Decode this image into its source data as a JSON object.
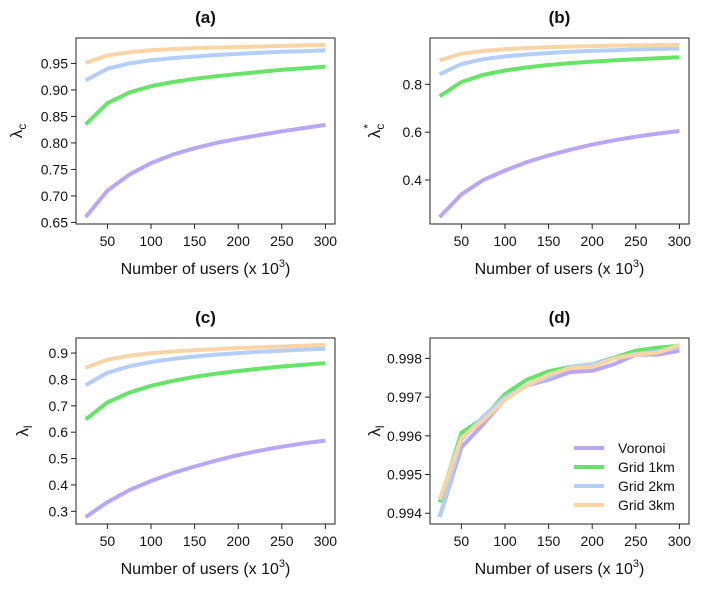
{
  "colors": {
    "Voronoi": "#b9a6f4",
    "Grid 1km": "#66e467",
    "Grid 2km": "#b4cef8",
    "Grid 3km": "#f8d4a6"
  },
  "legend": {
    "placement": "bottom-right",
    "panel": "(d)",
    "entries": [
      "Voronoi",
      "Grid 1km",
      "Grid 2km",
      "Grid 3km"
    ]
  },
  "chart_data": [
    {
      "type": "line",
      "title": "(a)",
      "xlabel": "Number of users (x 10^3)",
      "xlabel_base": "Number of users (x 10",
      "xlabel_sup": "3",
      "xlabel_close": ")",
      "ylabel": "λc",
      "ylabel_main": "λ",
      "ylabel_sub": "c",
      "ylabel_sup": "",
      "x": [
        25,
        50,
        75,
        100,
        125,
        150,
        175,
        200,
        225,
        250,
        275,
        300
      ],
      "xticks": [
        50,
        100,
        150,
        200,
        250,
        300
      ],
      "xtick_labels": [
        "50",
        "100",
        "150",
        "200",
        "250",
        "300"
      ],
      "yticks": [
        0.65,
        0.7,
        0.75,
        0.8,
        0.85,
        0.9,
        0.95
      ],
      "ytick_labels": [
        "0.65",
        "0.70",
        "0.75",
        "0.80",
        "0.85",
        "0.90",
        "0.95"
      ],
      "grid": false,
      "series": [
        {
          "name": "Voronoi",
          "values": [
            0.66,
            0.71,
            0.74,
            0.762,
            0.778,
            0.79,
            0.8,
            0.808,
            0.815,
            0.822,
            0.828,
            0.834
          ]
        },
        {
          "name": "Grid 1km",
          "values": [
            0.835,
            0.875,
            0.895,
            0.907,
            0.915,
            0.921,
            0.926,
            0.93,
            0.934,
            0.938,
            0.941,
            0.944
          ]
        },
        {
          "name": "Grid 2km",
          "values": [
            0.918,
            0.94,
            0.95,
            0.956,
            0.96,
            0.963,
            0.966,
            0.968,
            0.97,
            0.972,
            0.973,
            0.975
          ]
        },
        {
          "name": "Grid 3km",
          "values": [
            0.951,
            0.965,
            0.971,
            0.975,
            0.977,
            0.979,
            0.98,
            0.981,
            0.982,
            0.983,
            0.984,
            0.985
          ]
        }
      ]
    },
    {
      "type": "line",
      "title": "(b)",
      "xlabel": "Number of users (x 10^3)",
      "xlabel_base": "Number of users (x 10",
      "xlabel_sup": "3",
      "xlabel_close": ")",
      "ylabel": "λc*",
      "ylabel_main": "λ",
      "ylabel_sub": "c",
      "ylabel_sup": "*",
      "x": [
        25,
        50,
        75,
        100,
        125,
        150,
        175,
        200,
        225,
        250,
        275,
        300
      ],
      "xticks": [
        50,
        100,
        150,
        200,
        250,
        300
      ],
      "xtick_labels": [
        "50",
        "100",
        "150",
        "200",
        "250",
        "300"
      ],
      "yticks": [
        0.4,
        0.6,
        0.8
      ],
      "ytick_labels": [
        "0.4",
        "0.6",
        "0.8"
      ],
      "grid": false,
      "series": [
        {
          "name": "Voronoi",
          "values": [
            0.245,
            0.34,
            0.4,
            0.44,
            0.475,
            0.503,
            0.527,
            0.548,
            0.566,
            0.581,
            0.594,
            0.605
          ]
        },
        {
          "name": "Grid 1km",
          "values": [
            0.75,
            0.81,
            0.84,
            0.858,
            0.871,
            0.881,
            0.889,
            0.895,
            0.9,
            0.905,
            0.909,
            0.913
          ]
        },
        {
          "name": "Grid 2km",
          "values": [
            0.842,
            0.885,
            0.905,
            0.917,
            0.925,
            0.931,
            0.936,
            0.94,
            0.943,
            0.946,
            0.948,
            0.95
          ]
        },
        {
          "name": "Grid 3km",
          "values": [
            0.9,
            0.928,
            0.94,
            0.947,
            0.952,
            0.955,
            0.958,
            0.96,
            0.962,
            0.963,
            0.964,
            0.965
          ]
        }
      ]
    },
    {
      "type": "line",
      "title": "(c)",
      "xlabel": "Number of users (x 10^3)",
      "xlabel_base": "Number of users (x 10",
      "xlabel_sup": "3",
      "xlabel_close": ")",
      "ylabel": "λl",
      "ylabel_main": "λ",
      "ylabel_sub": "l",
      "ylabel_sup": "",
      "x": [
        25,
        50,
        75,
        100,
        125,
        150,
        175,
        200,
        225,
        250,
        275,
        300
      ],
      "xticks": [
        50,
        100,
        150,
        200,
        250,
        300
      ],
      "xtick_labels": [
        "50",
        "100",
        "150",
        "200",
        "250",
        "300"
      ],
      "yticks": [
        0.3,
        0.4,
        0.5,
        0.6,
        0.7,
        0.8,
        0.9
      ],
      "ytick_labels": [
        "0.3",
        "0.4",
        "0.5",
        "0.6",
        "0.7",
        "0.8",
        "0.9"
      ],
      "grid": false,
      "series": [
        {
          "name": "Voronoi",
          "values": [
            0.278,
            0.335,
            0.38,
            0.415,
            0.445,
            0.47,
            0.493,
            0.513,
            0.53,
            0.545,
            0.558,
            0.568
          ]
        },
        {
          "name": "Grid 1km",
          "values": [
            0.648,
            0.713,
            0.75,
            0.776,
            0.795,
            0.81,
            0.822,
            0.832,
            0.841,
            0.849,
            0.856,
            0.862
          ]
        },
        {
          "name": "Grid 2km",
          "values": [
            0.778,
            0.825,
            0.85,
            0.866,
            0.878,
            0.887,
            0.894,
            0.9,
            0.905,
            0.909,
            0.913,
            0.916
          ]
        },
        {
          "name": "Grid 3km",
          "values": [
            0.845,
            0.875,
            0.89,
            0.899,
            0.906,
            0.911,
            0.915,
            0.919,
            0.922,
            0.925,
            0.928,
            0.931
          ]
        }
      ]
    },
    {
      "type": "line",
      "title": "(d)",
      "xlabel": "Number of users (x 10^3)",
      "xlabel_base": "Number of users (x 10",
      "xlabel_sup": "3",
      "xlabel_close": ")",
      "ylabel": "λl",
      "ylabel_main": "λ",
      "ylabel_sub": "l",
      "ylabel_sup": "",
      "x": [
        25,
        50,
        75,
        100,
        125,
        150,
        175,
        200,
        225,
        250,
        275,
        300
      ],
      "xticks": [
        50,
        100,
        150,
        200,
        250,
        300
      ],
      "xtick_labels": [
        "50",
        "100",
        "150",
        "200",
        "250",
        "300"
      ],
      "yticks": [
        0.994,
        0.995,
        0.996,
        0.997,
        0.998
      ],
      "ytick_labels": [
        "0.994",
        "0.995",
        "0.996",
        "0.997",
        "0.998"
      ],
      "grid": false,
      "series": [
        {
          "name": "Voronoi",
          "values": [
            0.9939,
            0.9957,
            0.9963,
            0.99695,
            0.9973,
            0.99745,
            0.99765,
            0.99768,
            0.99785,
            0.9981,
            0.9981,
            0.9982
          ]
        },
        {
          "name": "Grid 1km",
          "values": [
            0.99428,
            0.99608,
            0.99645,
            0.99708,
            0.99745,
            0.99767,
            0.99778,
            0.99785,
            0.99802,
            0.9982,
            0.99828,
            0.99833
          ]
        },
        {
          "name": "Grid 2km",
          "values": [
            0.9939,
            0.9959,
            0.9965,
            0.997,
            0.9973,
            0.99752,
            0.99778,
            0.99785,
            0.998,
            0.99812,
            0.99818,
            0.99828
          ]
        },
        {
          "name": "Grid 3km",
          "values": [
            0.99435,
            0.99595,
            0.9964,
            0.99693,
            0.9973,
            0.99758,
            0.99775,
            0.99778,
            0.998,
            0.9981,
            0.99815,
            0.99835
          ]
        }
      ]
    }
  ]
}
